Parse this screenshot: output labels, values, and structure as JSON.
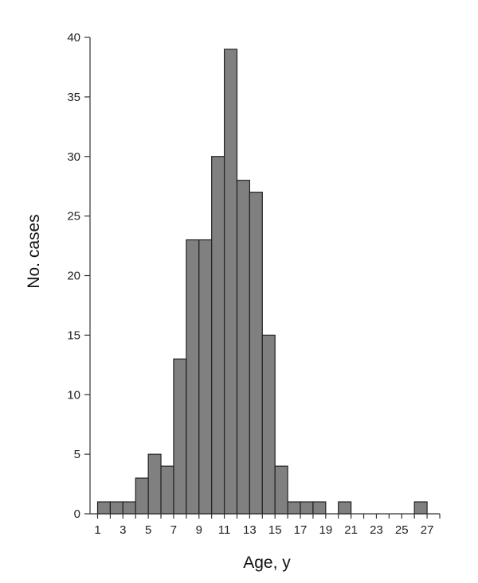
{
  "chart_data": {
    "type": "bar",
    "title": "",
    "xlabel": "Age, y",
    "ylabel": "No. cases",
    "x_range": [
      1,
      28
    ],
    "ylim": [
      0,
      40
    ],
    "y_ticks": [
      0,
      5,
      10,
      15,
      20,
      25,
      30,
      35,
      40
    ],
    "x_tick_labels": [
      1,
      3,
      5,
      7,
      9,
      11,
      13,
      15,
      17,
      19,
      21,
      23,
      25,
      27
    ],
    "grid": false,
    "bar_color": "#808080",
    "bar_edge_color": "#222222",
    "categories": [
      1,
      2,
      3,
      4,
      5,
      6,
      7,
      8,
      9,
      10,
      11,
      12,
      13,
      14,
      15,
      16,
      17,
      18,
      19,
      20,
      21,
      22,
      23,
      24,
      25,
      26,
      27
    ],
    "values": [
      1,
      1,
      1,
      3,
      5,
      4,
      13,
      23,
      23,
      30,
      39,
      28,
      27,
      15,
      4,
      1,
      1,
      1,
      0,
      1,
      0,
      0,
      0,
      0,
      0,
      1,
      0
    ]
  }
}
